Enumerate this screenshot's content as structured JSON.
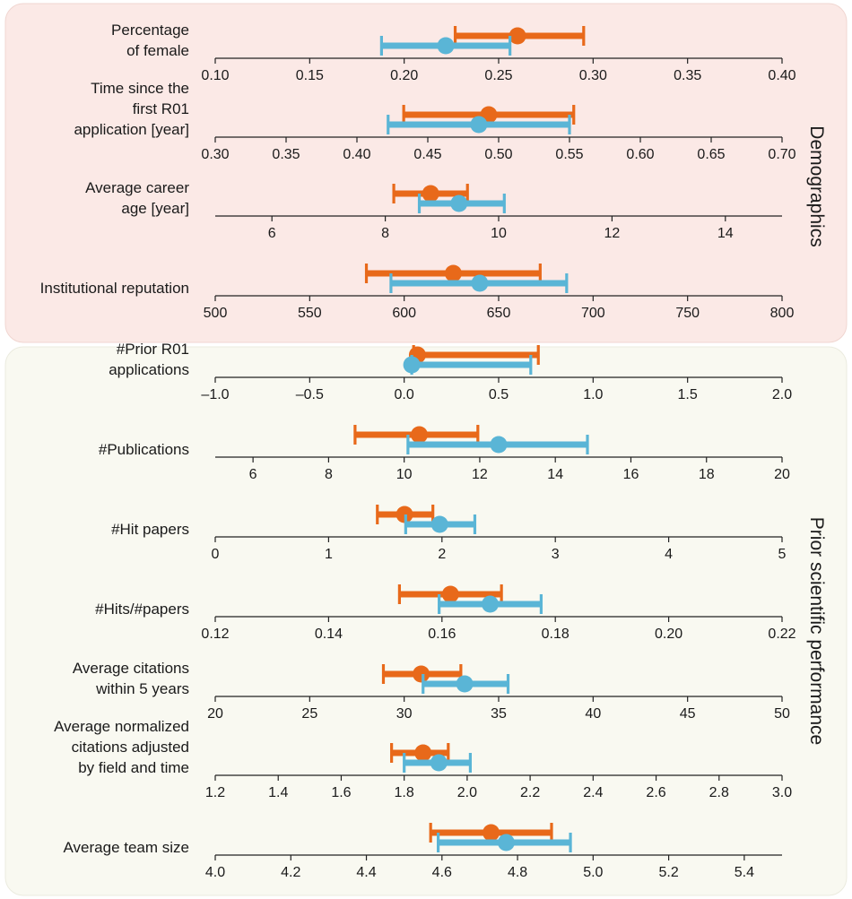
{
  "groups": [
    {
      "label": "Demographics",
      "bg": "#fbe9e6",
      "border": "#f0d6d1"
    },
    {
      "label": "Prior scientific performance",
      "bg": "#f9f9f1",
      "border": "#ebebdf"
    }
  ],
  "colors": {
    "orange": "#e8691a",
    "blue": "#5ab5d6"
  },
  "chart_data": [
    {
      "type": "scatter",
      "group": 0,
      "label": [
        "Percentage",
        "of female"
      ],
      "xlim": [
        0.1,
        0.4
      ],
      "ticks": [
        0.1,
        0.15,
        0.2,
        0.25,
        0.3,
        0.35,
        0.4
      ],
      "tick_labels": [
        "0.10",
        "0.15",
        "0.20",
        "0.25",
        "0.30",
        "0.35",
        "0.40"
      ],
      "series": [
        {
          "color": "orange",
          "mean": 0.26,
          "lo": 0.227,
          "hi": 0.295
        },
        {
          "color": "blue",
          "mean": 0.222,
          "lo": 0.188,
          "hi": 0.256
        }
      ]
    },
    {
      "type": "scatter",
      "group": 0,
      "label": [
        "Time since the",
        "first R01",
        "application [year]"
      ],
      "xlim": [
        0.3,
        0.7
      ],
      "ticks": [
        0.3,
        0.35,
        0.4,
        0.45,
        0.5,
        0.55,
        0.6,
        0.65,
        0.7
      ],
      "tick_labels": [
        "0.30",
        "0.35",
        "0.40",
        "0.45",
        "0.50",
        "0.55",
        "0.60",
        "0.65",
        "0.70"
      ],
      "series": [
        {
          "color": "orange",
          "mean": 0.493,
          "lo": 0.433,
          "hi": 0.553
        },
        {
          "color": "blue",
          "mean": 0.486,
          "lo": 0.422,
          "hi": 0.55
        }
      ]
    },
    {
      "type": "scatter",
      "group": 0,
      "label": [
        "Average career",
        "age [year]"
      ],
      "xlim": [
        5,
        15
      ],
      "ticks": [
        6,
        8,
        10,
        12,
        14
      ],
      "tick_labels": [
        "6",
        "8",
        "10",
        "12",
        "14"
      ],
      "series": [
        {
          "color": "orange",
          "mean": 8.8,
          "lo": 8.15,
          "hi": 9.45
        },
        {
          "color": "blue",
          "mean": 9.3,
          "lo": 8.6,
          "hi": 10.1
        }
      ]
    },
    {
      "type": "scatter",
      "group": 0,
      "label": [
        "Institutional reputation"
      ],
      "xlim": [
        500,
        800
      ],
      "ticks": [
        500,
        550,
        600,
        650,
        700,
        750,
        800
      ],
      "tick_labels": [
        "500",
        "550",
        "600",
        "650",
        "700",
        "750",
        "800"
      ],
      "series": [
        {
          "color": "orange",
          "mean": 626,
          "lo": 580,
          "hi": 672
        },
        {
          "color": "blue",
          "mean": 640,
          "lo": 593,
          "hi": 686
        }
      ]
    },
    {
      "type": "scatter",
      "group": 1,
      "label": [
        "#Prior R01",
        "applications"
      ],
      "xlim": [
        -1.0,
        2.0
      ],
      "ticks": [
        -1.0,
        -0.5,
        0.0,
        0.5,
        1.0,
        1.5,
        2.0
      ],
      "tick_labels": [
        "–1.0",
        "–0.5",
        "0.0",
        "0.5",
        "1.0",
        "1.5",
        "2.0"
      ],
      "series": [
        {
          "color": "orange",
          "mean": 0.07,
          "lo": 0.05,
          "hi": 0.71
        },
        {
          "color": "blue",
          "mean": 0.04,
          "lo": 0.04,
          "hi": 0.67
        }
      ]
    },
    {
      "type": "scatter",
      "group": 1,
      "label": [
        "#Publications"
      ],
      "xlim": [
        5,
        20
      ],
      "ticks": [
        6,
        8,
        10,
        12,
        14,
        16,
        18,
        20
      ],
      "tick_labels": [
        "6",
        "8",
        "10",
        "12",
        "14",
        "16",
        "18",
        "20"
      ],
      "series": [
        {
          "color": "orange",
          "mean": 10.4,
          "lo": 8.7,
          "hi": 11.95
        },
        {
          "color": "blue",
          "mean": 12.5,
          "lo": 10.1,
          "hi": 14.85
        }
      ]
    },
    {
      "type": "scatter",
      "group": 1,
      "label": [
        "#Hit papers"
      ],
      "xlim": [
        0,
        5
      ],
      "ticks": [
        0,
        1,
        2,
        3,
        4,
        5
      ],
      "tick_labels": [
        "0",
        "1",
        "2",
        "3",
        "4",
        "5"
      ],
      "series": [
        {
          "color": "orange",
          "mean": 1.67,
          "lo": 1.43,
          "hi": 1.92
        },
        {
          "color": "blue",
          "mean": 1.98,
          "lo": 1.68,
          "hi": 2.29
        }
      ]
    },
    {
      "type": "scatter",
      "group": 1,
      "label": [
        "#Hits/#papers"
      ],
      "xlim": [
        0.12,
        0.22
      ],
      "ticks": [
        0.12,
        0.14,
        0.16,
        0.18,
        0.2,
        0.22
      ],
      "tick_labels": [
        "0.12",
        "0.14",
        "0.16",
        "0.18",
        "0.20",
        "0.22"
      ],
      "series": [
        {
          "color": "orange",
          "mean": 0.1615,
          "lo": 0.1525,
          "hi": 0.1705
        },
        {
          "color": "blue",
          "mean": 0.1685,
          "lo": 0.1595,
          "hi": 0.1775
        }
      ]
    },
    {
      "type": "scatter",
      "group": 1,
      "label": [
        "Average citations",
        "within 5 years"
      ],
      "xlim": [
        20,
        50
      ],
      "ticks": [
        20,
        25,
        30,
        35,
        40,
        45,
        50
      ],
      "tick_labels": [
        "20",
        "25",
        "30",
        "35",
        "40",
        "45",
        "50"
      ],
      "series": [
        {
          "color": "orange",
          "mean": 30.9,
          "lo": 28.9,
          "hi": 33.0
        },
        {
          "color": "blue",
          "mean": 33.2,
          "lo": 31.0,
          "hi": 35.5
        }
      ]
    },
    {
      "type": "scatter",
      "group": 1,
      "label": [
        "Average normalized",
        "citations adjusted",
        "by field and time"
      ],
      "xlim": [
        1.2,
        3.0
      ],
      "ticks": [
        1.2,
        1.4,
        1.6,
        1.8,
        2.0,
        2.2,
        2.4,
        2.6,
        2.8,
        3.0
      ],
      "tick_labels": [
        "1.2",
        "1.4",
        "1.6",
        "1.8",
        "2.0",
        "2.2",
        "2.4",
        "2.6",
        "2.8",
        "3.0"
      ],
      "series": [
        {
          "color": "orange",
          "mean": 1.86,
          "lo": 1.76,
          "hi": 1.94
        },
        {
          "color": "blue",
          "mean": 1.91,
          "lo": 1.8,
          "hi": 2.01
        }
      ]
    },
    {
      "type": "scatter",
      "group": 1,
      "label": [
        "Average team size"
      ],
      "xlim": [
        4.0,
        5.5
      ],
      "ticks": [
        4.0,
        4.2,
        4.4,
        4.6,
        4.8,
        5.0,
        5.2,
        5.4
      ],
      "tick_labels": [
        "4.0",
        "4.2",
        "4.4",
        "4.6",
        "4.8",
        "5.0",
        "5.2",
        "5.4"
      ],
      "series": [
        {
          "color": "orange",
          "mean": 4.73,
          "lo": 4.57,
          "hi": 4.89
        },
        {
          "color": "blue",
          "mean": 4.77,
          "lo": 4.59,
          "hi": 4.94
        }
      ]
    }
  ]
}
